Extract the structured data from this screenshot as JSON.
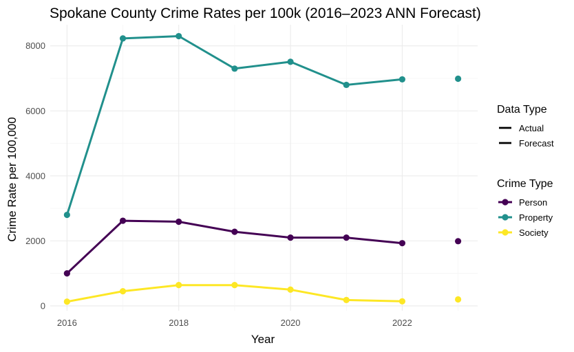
{
  "chart_data": {
    "type": "line",
    "title": "Spokane County Crime Rates per 100k (2016–2023 ANN Forecast)",
    "xlabel": "Year",
    "ylabel": "Crime Rate per 100,000",
    "xlim": [
      2015.7,
      2023.35
    ],
    "ylim": [
      -150,
      8650
    ],
    "x_ticks": [
      2016,
      2018,
      2020,
      2022
    ],
    "y_ticks": [
      0,
      2000,
      4000,
      6000,
      8000
    ],
    "grid": true,
    "x": [
      2016,
      2017,
      2018,
      2019,
      2020,
      2021,
      2022
    ],
    "forecast_x": 2023,
    "series": [
      {
        "name": "Person",
        "color": "#440154",
        "values": [
          1000,
          2620,
          2590,
          2280,
          2100,
          2100,
          1930
        ],
        "forecast": 1990
      },
      {
        "name": "Property",
        "color": "#21908C",
        "values": [
          2800,
          8230,
          8300,
          7300,
          7510,
          6800,
          6970
        ],
        "forecast": 6990
      },
      {
        "name": "Society",
        "color": "#FDE725",
        "values": [
          130,
          450,
          640,
          640,
          500,
          180,
          140
        ],
        "forecast": 200
      }
    ],
    "legend": {
      "placement": "right",
      "data_type_title": "Data Type",
      "data_type_items": [
        "Actual",
        "Forecast"
      ],
      "crime_type_title": "Crime Type"
    }
  }
}
